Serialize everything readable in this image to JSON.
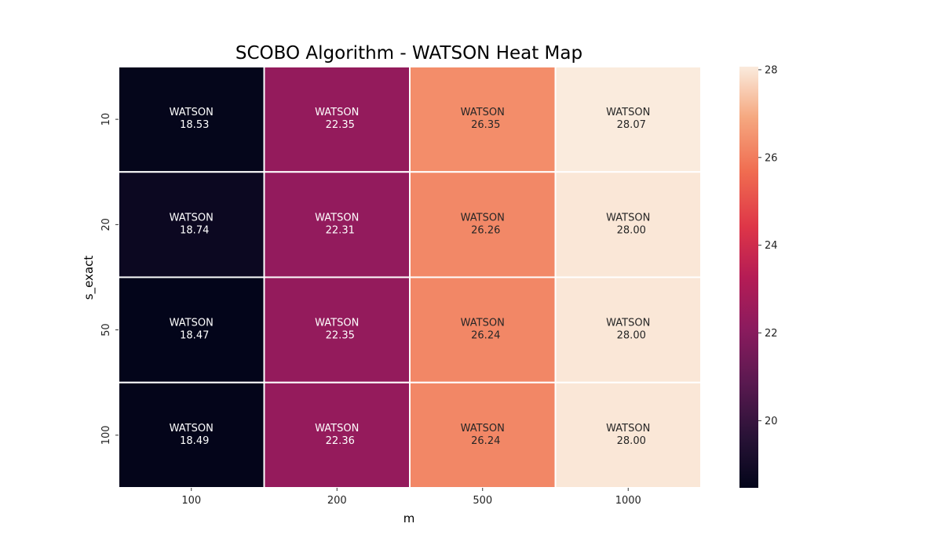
{
  "chart_data": {
    "type": "heatmap",
    "title": "SCOBO Algorithm - WATSON Heat Map",
    "xlabel": "m",
    "ylabel": "s_exact",
    "x_categories": [
      "100",
      "200",
      "500",
      "1000"
    ],
    "y_categories": [
      "10",
      "20",
      "50",
      "100"
    ],
    "cell_prefix": "WATSON",
    "values": [
      [
        18.53,
        22.35,
        26.35,
        28.07
      ],
      [
        18.74,
        22.31,
        26.26,
        28.0
      ],
      [
        18.47,
        22.35,
        26.24,
        28.0
      ],
      [
        18.49,
        22.36,
        26.24,
        28.0
      ]
    ],
    "value_labels": [
      [
        "18.53",
        "22.35",
        "26.35",
        "28.07"
      ],
      [
        "18.74",
        "22.31",
        "26.26",
        "28.00"
      ],
      [
        "18.47",
        "22.35",
        "26.24",
        "28.00"
      ],
      [
        "18.49",
        "22.36",
        "26.24",
        "28.00"
      ]
    ],
    "colorbar": {
      "min": 18.47,
      "max": 28.07,
      "ticks": [
        "20",
        "22",
        "24",
        "26",
        "28"
      ],
      "colormap": "rocket"
    }
  }
}
